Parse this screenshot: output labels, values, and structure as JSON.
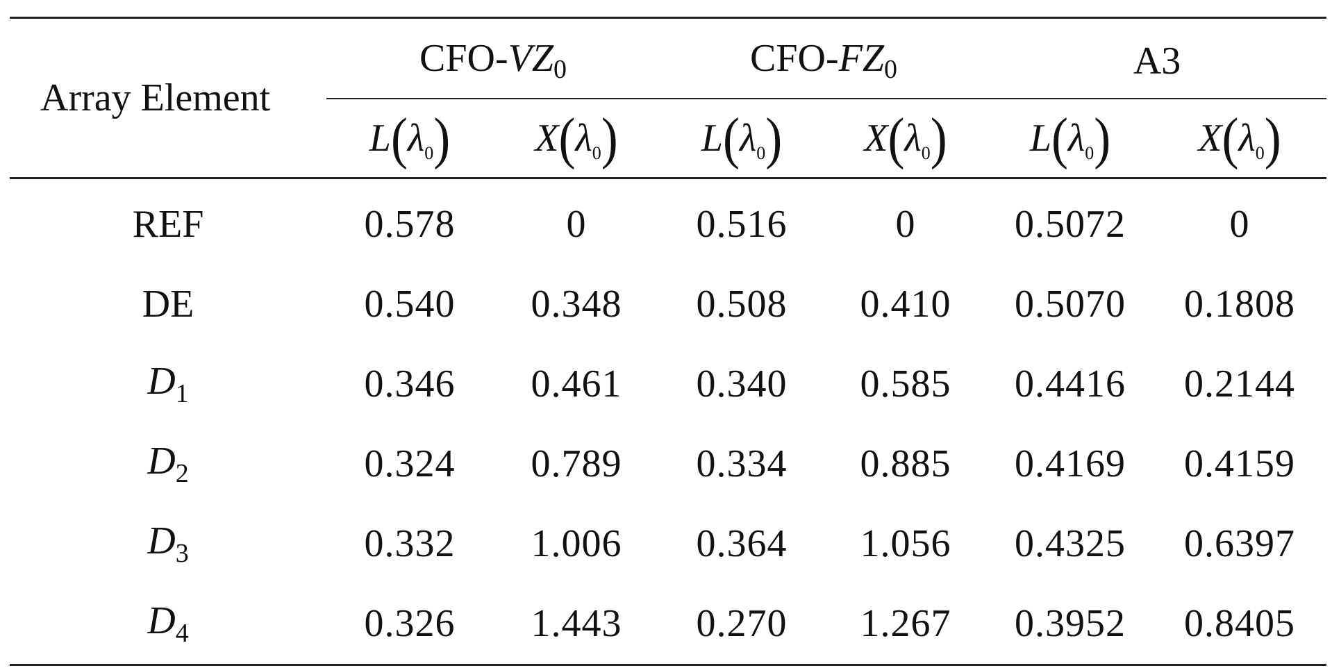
{
  "table": {
    "row_header_label": "Array Element",
    "groups": [
      {
        "prefix": "CFO-",
        "var": "VZ",
        "sub": "0"
      },
      {
        "prefix": "CFO-",
        "var": "FZ",
        "sub": "0"
      },
      {
        "prefix": "",
        "var": "",
        "plain": "A3",
        "sub": ""
      }
    ],
    "subheaders": [
      {
        "var": "L",
        "lambda": "λ",
        "sub": "0"
      },
      {
        "var": "X",
        "lambda": "λ",
        "sub": "0"
      },
      {
        "var": "L",
        "lambda": "λ",
        "sub": "0"
      },
      {
        "var": "X",
        "lambda": "λ",
        "sub": "0"
      },
      {
        "var": "L",
        "lambda": "λ",
        "sub": "0"
      },
      {
        "var": "X",
        "lambda": "λ",
        "sub": "0"
      }
    ],
    "rows": [
      {
        "label": "REF",
        "label_sub": "",
        "italic": false,
        "values": [
          "0.578",
          "0",
          "0.516",
          "0",
          "0.5072",
          "0"
        ]
      },
      {
        "label": "DE",
        "label_sub": "",
        "italic": false,
        "values": [
          "0.540",
          "0.348",
          "0.508",
          "0.410",
          "0.5070",
          "0.1808"
        ]
      },
      {
        "label": "D",
        "label_sub": "1",
        "italic": true,
        "values": [
          "0.346",
          "0.461",
          "0.340",
          "0.585",
          "0.4416",
          "0.2144"
        ]
      },
      {
        "label": "D",
        "label_sub": "2",
        "italic": true,
        "values": [
          "0.324",
          "0.789",
          "0.334",
          "0.885",
          "0.4169",
          "0.4159"
        ]
      },
      {
        "label": "D",
        "label_sub": "3",
        "italic": true,
        "values": [
          "0.332",
          "1.006",
          "0.364",
          "1.056",
          "0.4325",
          "0.6397"
        ]
      },
      {
        "label": "D",
        "label_sub": "4",
        "italic": true,
        "values": [
          "0.326",
          "1.443",
          "0.270",
          "1.267",
          "0.3952",
          "0.8405"
        ]
      }
    ]
  }
}
